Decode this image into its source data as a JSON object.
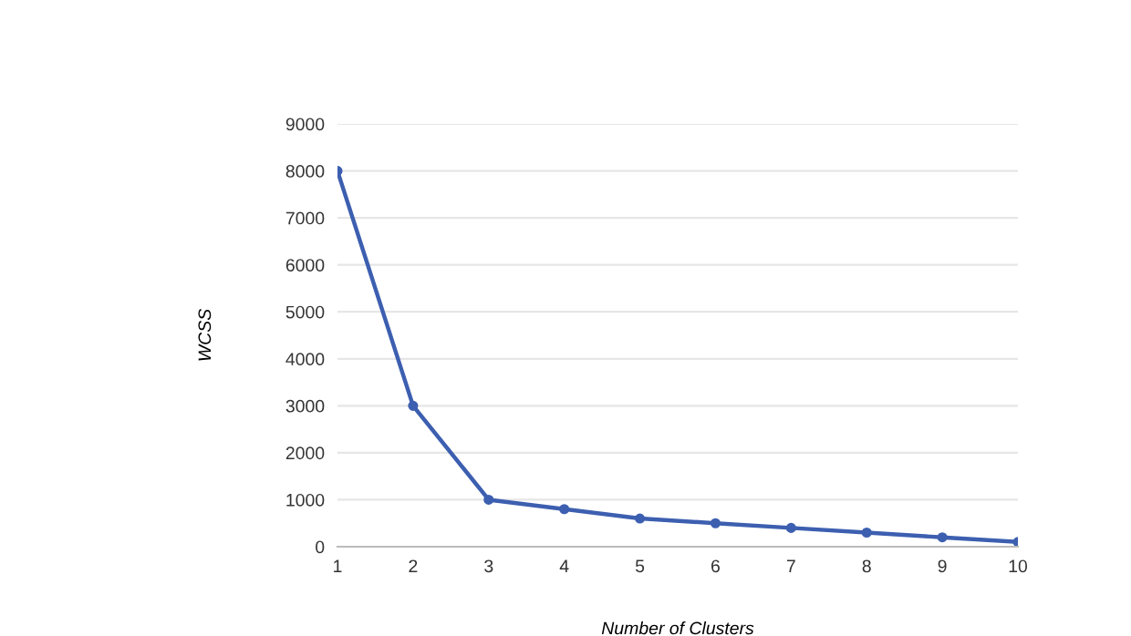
{
  "chart_data": {
    "type": "line",
    "xlabel": "Number of Clusters",
    "ylabel": "WCSS",
    "x": [
      1,
      2,
      3,
      4,
      5,
      6,
      7,
      8,
      9,
      10
    ],
    "series": [
      {
        "color": "#3d5fb0",
        "values": [
          8000,
          3000,
          1000,
          800,
          600,
          500,
          400,
          300,
          200,
          100
        ]
      }
    ],
    "xlim": [
      1,
      10
    ],
    "xticks": [
      1,
      2,
      3,
      4,
      5,
      6,
      7,
      8,
      9,
      10
    ],
    "ylim": [
      0,
      9000
    ],
    "yticks": [
      0,
      1000,
      2000,
      3000,
      4000,
      5000,
      6000,
      7000,
      8000,
      9000
    ],
    "grid": "y",
    "marker": "circle",
    "line_style": "solid"
  }
}
